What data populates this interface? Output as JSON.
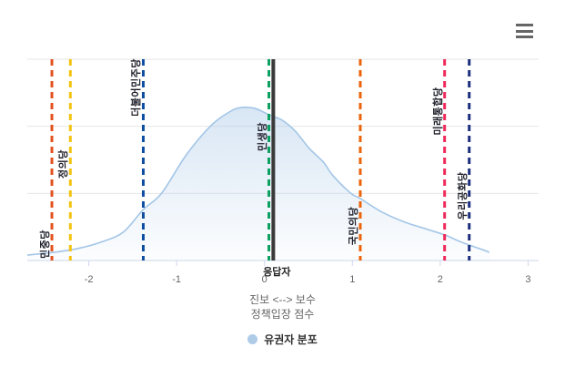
{
  "chart_data": {
    "type": "area",
    "title": "",
    "xlabel_line1": "진보 <--> 보수",
    "xlabel_line2": "정책입장 점수",
    "ylabel": "",
    "y_axis_labels_visible": false,
    "grid": true,
    "legend_position": "bottom-center",
    "x_ticks": [
      "-2",
      "-1",
      "0",
      "1",
      "2",
      "3"
    ],
    "x_tick_values": [
      -2,
      -1,
      0,
      1,
      2,
      3
    ],
    "x_range_plotted": [
      -2.7,
      3.12
    ],
    "series": [
      {
        "name": "유권자 분포",
        "type": "area",
        "color": "#a3c6e7",
        "fill_color": "#aecbe8",
        "note": "kernel density of voters; height is relative (unlabeled y axis), 1.0 = top gridline",
        "points": [
          [
            -2.7,
            0.027
          ],
          [
            -2.39,
            0.041
          ],
          [
            -2.13,
            0.059
          ],
          [
            -1.87,
            0.09
          ],
          [
            -1.61,
            0.14
          ],
          [
            -1.38,
            0.253
          ],
          [
            -1.17,
            0.335
          ],
          [
            -0.89,
            0.525
          ],
          [
            -0.61,
            0.67
          ],
          [
            -0.4,
            0.738
          ],
          [
            -0.27,
            0.76
          ],
          [
            -0.11,
            0.756
          ],
          [
            0.05,
            0.724
          ],
          [
            0.2,
            0.697
          ],
          [
            0.35,
            0.643
          ],
          [
            0.51,
            0.557
          ],
          [
            0.67,
            0.489
          ],
          [
            0.78,
            0.421
          ],
          [
            0.98,
            0.335
          ],
          [
            1.09,
            0.308
          ],
          [
            1.34,
            0.24
          ],
          [
            1.6,
            0.19
          ],
          [
            1.86,
            0.154
          ],
          [
            2.05,
            0.127
          ],
          [
            2.22,
            0.095
          ],
          [
            2.33,
            0.077
          ],
          [
            2.48,
            0.054
          ],
          [
            2.56,
            0.041
          ]
        ]
      }
    ],
    "plot_lines": [
      {
        "label": "민중당",
        "x": -2.42,
        "color": "#e2511f",
        "style": "dashed",
        "label_pos": 0.92
      },
      {
        "label": "정의당",
        "x": -2.21,
        "color": "#f2c411",
        "style": "dashed",
        "label_pos": 0.52
      },
      {
        "label": "더불어민주당",
        "x": -1.38,
        "color": "#0d4da0",
        "style": "dashed",
        "label_pos": 0.14
      },
      {
        "label": "민생당",
        "x": 0.05,
        "color": "#0aa05f",
        "style": "dashed",
        "label_pos": 0.385
      },
      {
        "label": "응답자",
        "x": 0.1,
        "color": "#3a3a3a",
        "style": "solid",
        "label_pos": "below"
      },
      {
        "label": "국민의당",
        "x": 1.09,
        "color": "#eb640b",
        "style": "dashed",
        "label_pos": 0.83
      },
      {
        "label": "미래통합당",
        "x": 2.05,
        "color": "#ef2a5a",
        "style": "dashed",
        "label_pos": 0.26
      },
      {
        "label": "우리공화당",
        "x": 2.33,
        "color": "#1c2e7d",
        "style": "dashed",
        "label_pos": 0.68
      }
    ],
    "legend": [
      {
        "label": "유권자 분포",
        "color": "#aecbe8"
      }
    ],
    "colors": {
      "gridline": "#e6e6e6",
      "axis_line": "#ccd6eb",
      "tick": "#ccd6eb",
      "tick_label": "#666666",
      "axis_title": "#666666",
      "menu_icon": "#666666",
      "background": "#ffffff"
    }
  }
}
